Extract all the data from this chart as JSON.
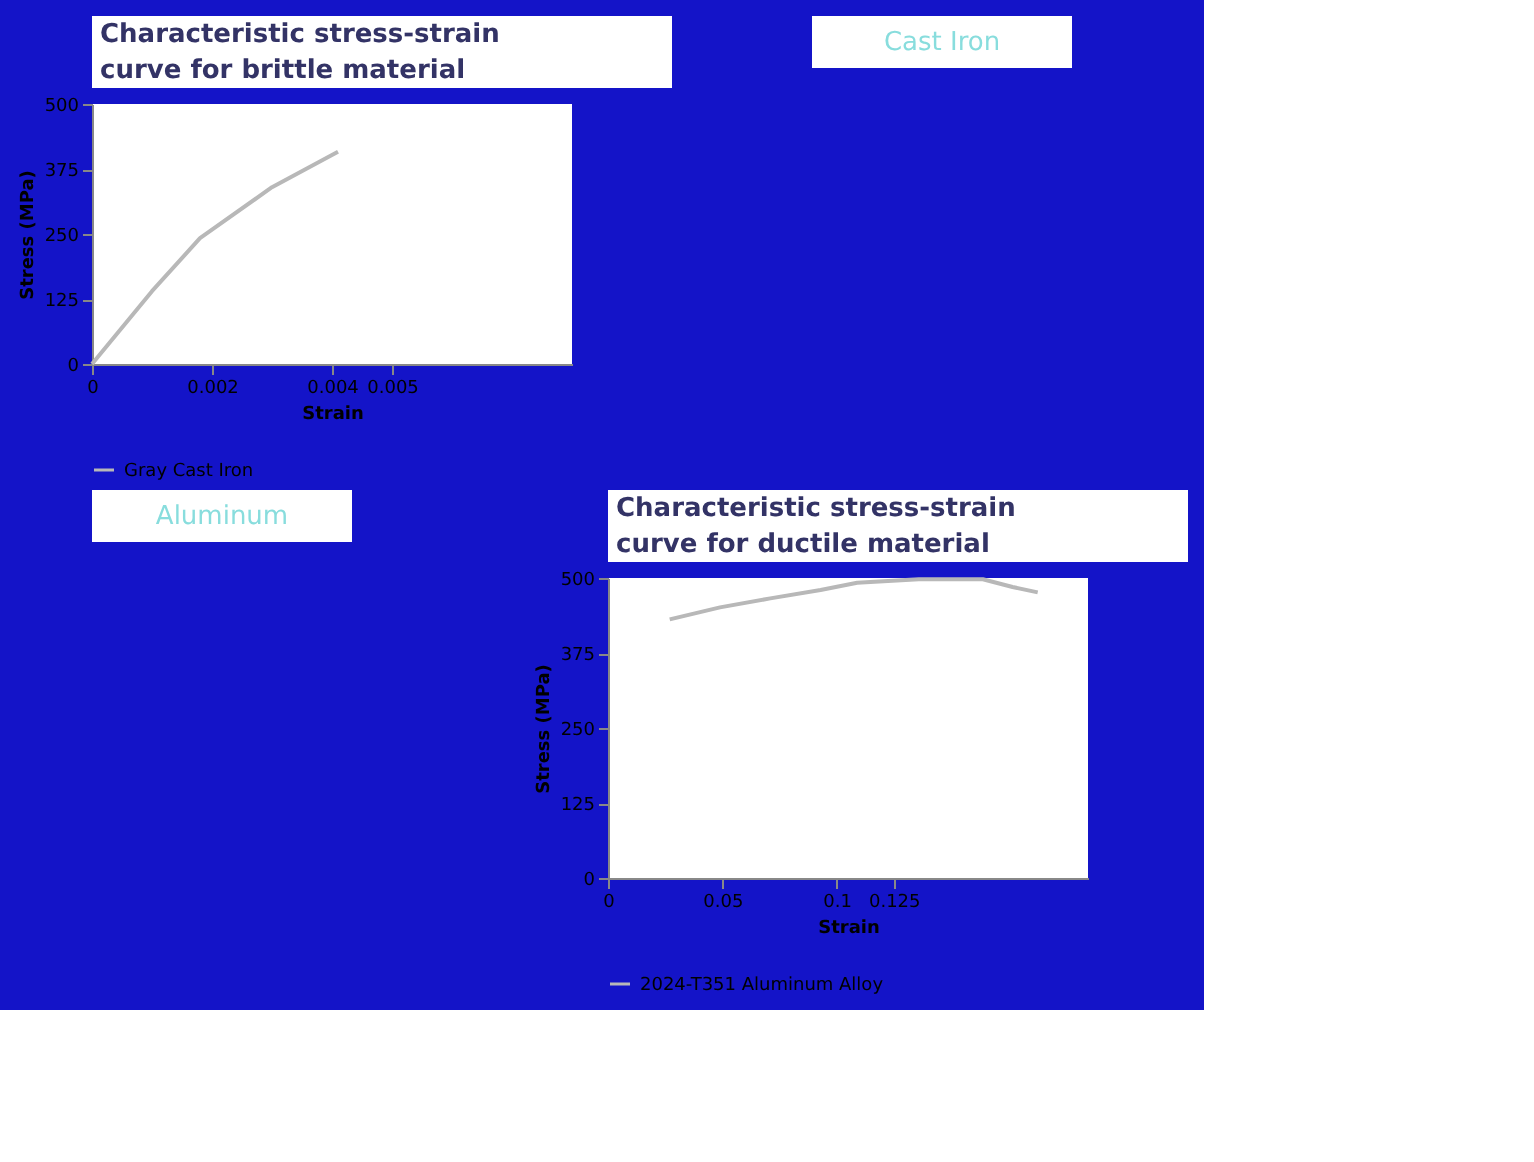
{
  "chart_data": [
    {
      "type": "line",
      "title": "Characteristic stress-strain curve for brittle material",
      "xlabel": "Strain",
      "ylabel": "Stress (MPa)",
      "x": [
        0,
        0.001,
        0.0018,
        0.003,
        0.0041
      ],
      "series": [
        {
          "name": "Gray Cast Iron",
          "color": "#b8b8b8",
          "values": [
            0,
            140,
            242,
            340,
            408
          ]
        }
      ],
      "xlim": [
        0,
        0.008
      ],
      "xticks": [
        0,
        0.002,
        0.004,
        0.005
      ],
      "ylim": [
        0,
        500
      ],
      "yticks": [
        0,
        125,
        250,
        375,
        500
      ],
      "legend": "bottom",
      "annotations": [
        "Cast Iron"
      ]
    },
    {
      "type": "line",
      "title": "Characteristic stress-strain curve for ductile material",
      "xlabel": "Strain",
      "ylabel": "Stress (MPa)",
      "x": [
        0.027,
        0.049,
        0.071,
        0.093,
        0.109,
        0.136,
        0.164,
        0.177,
        0.188
      ],
      "series": [
        {
          "name": "2024-T351 Aluminum Alloy",
          "color": "#b8b8b8",
          "values": [
            431,
            451,
            466,
            480,
            492,
            498,
            498,
            485,
            476
          ]
        }
      ],
      "xlim": [
        0,
        0.21
      ],
      "xticks": [
        0,
        0.05,
        0.1,
        0.125
      ],
      "ylim": [
        0,
        500
      ],
      "yticks": [
        0,
        125,
        250,
        375,
        500
      ],
      "legend": "bottom",
      "annotations": [
        "Aluminum"
      ]
    }
  ]
}
